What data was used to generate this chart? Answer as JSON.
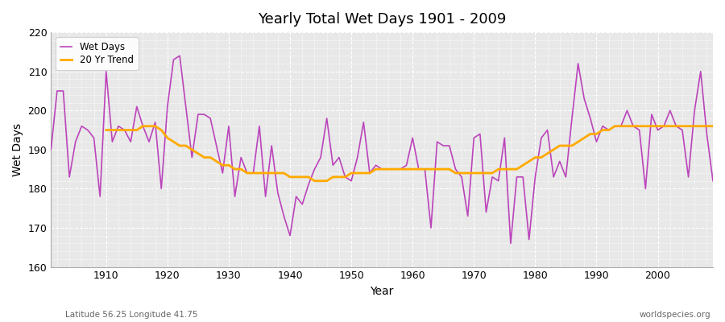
{
  "title": "Yearly Total Wet Days 1901 - 2009",
  "xlabel": "Year",
  "ylabel": "Wet Days",
  "subtitle": "Latitude 56.25 Longitude 41.75",
  "watermark": "worldspecies.org",
  "bg_color": "#e8e8e8",
  "wet_days_color": "#bb44bb",
  "trend_color": "#ffaa00",
  "ylim": [
    160,
    220
  ],
  "xlim": [
    1901,
    2009
  ],
  "years": [
    1901,
    1902,
    1903,
    1904,
    1905,
    1906,
    1907,
    1908,
    1909,
    1910,
    1911,
    1912,
    1913,
    1914,
    1915,
    1916,
    1917,
    1918,
    1919,
    1920,
    1921,
    1922,
    1923,
    1924,
    1925,
    1926,
    1927,
    1928,
    1929,
    1930,
    1931,
    1932,
    1933,
    1934,
    1935,
    1936,
    1937,
    1938,
    1939,
    1940,
    1941,
    1942,
    1943,
    1944,
    1945,
    1946,
    1947,
    1948,
    1949,
    1950,
    1951,
    1952,
    1953,
    1954,
    1955,
    1956,
    1957,
    1958,
    1959,
    1960,
    1961,
    1962,
    1963,
    1964,
    1965,
    1966,
    1967,
    1968,
    1969,
    1970,
    1971,
    1972,
    1973,
    1974,
    1975,
    1976,
    1977,
    1978,
    1979,
    1980,
    1981,
    1982,
    1983,
    1984,
    1985,
    1986,
    1987,
    1988,
    1989,
    1990,
    1991,
    1992,
    1993,
    1994,
    1995,
    1996,
    1997,
    1998,
    1999,
    2000,
    2001,
    2002,
    2003,
    2004,
    2005,
    2006,
    2007,
    2008,
    2009
  ],
  "wet_days": [
    190,
    205,
    205,
    183,
    192,
    196,
    195,
    193,
    178,
    210,
    192,
    196,
    195,
    192,
    201,
    196,
    192,
    197,
    180,
    201,
    213,
    214,
    201,
    188,
    199,
    199,
    198,
    191,
    184,
    196,
    178,
    188,
    184,
    184,
    196,
    178,
    191,
    179,
    173,
    168,
    178,
    176,
    181,
    185,
    188,
    198,
    186,
    188,
    183,
    182,
    188,
    197,
    184,
    186,
    185,
    185,
    185,
    185,
    186,
    193,
    185,
    185,
    170,
    192,
    191,
    191,
    185,
    183,
    173,
    193,
    194,
    174,
    183,
    182,
    193,
    166,
    183,
    183,
    167,
    183,
    193,
    195,
    183,
    187,
    183,
    198,
    212,
    203,
    198,
    192,
    196,
    195,
    196,
    196,
    200,
    196,
    195,
    180,
    199,
    195,
    196,
    200,
    196,
    195,
    183,
    200,
    210,
    194,
    182
  ],
  "trend_years": [
    1910,
    1911,
    1912,
    1913,
    1914,
    1915,
    1916,
    1917,
    1918,
    1919,
    1920,
    1921,
    1922,
    1923,
    1924,
    1925,
    1926,
    1927,
    1928,
    1929,
    1930,
    1931,
    1932,
    1933,
    1934,
    1935,
    1936,
    1937,
    1938,
    1939,
    1940,
    1941,
    1942,
    1943,
    1944,
    1945,
    1946,
    1947,
    1948,
    1949,
    1950,
    1951,
    1952,
    1953,
    1954,
    1955,
    1956,
    1957,
    1958,
    1959,
    1960,
    1961,
    1962,
    1963,
    1964,
    1965,
    1966,
    1967,
    1968,
    1969,
    1970,
    1971,
    1972,
    1973,
    1974,
    1975,
    1976,
    1977,
    1978,
    1979,
    1980,
    1981,
    1982,
    1983,
    1984,
    1985,
    1986,
    1987,
    1988,
    1989,
    1990,
    1991,
    1992,
    1993,
    1994,
    1995,
    1996,
    1997,
    1998,
    1999,
    2000,
    2001,
    2002,
    2003,
    2004,
    2005,
    2006,
    2007,
    2008,
    2009
  ],
  "trend": [
    195,
    195,
    195,
    195,
    195,
    195,
    196,
    196,
    196,
    195,
    193,
    192,
    191,
    191,
    190,
    189,
    188,
    188,
    187,
    186,
    186,
    185,
    185,
    184,
    184,
    184,
    184,
    184,
    184,
    184,
    183,
    183,
    183,
    183,
    182,
    182,
    182,
    183,
    183,
    183,
    184,
    184,
    184,
    184,
    185,
    185,
    185,
    185,
    185,
    185,
    185,
    185,
    185,
    185,
    185,
    185,
    185,
    184,
    184,
    184,
    184,
    184,
    184,
    184,
    185,
    185,
    185,
    185,
    186,
    187,
    188,
    188,
    189,
    190,
    191,
    191,
    191,
    192,
    193,
    194,
    194,
    195,
    195,
    196,
    196,
    196,
    196,
    196,
    196,
    196,
    196,
    196,
    196,
    196,
    196,
    196,
    196,
    196,
    196,
    196
  ]
}
